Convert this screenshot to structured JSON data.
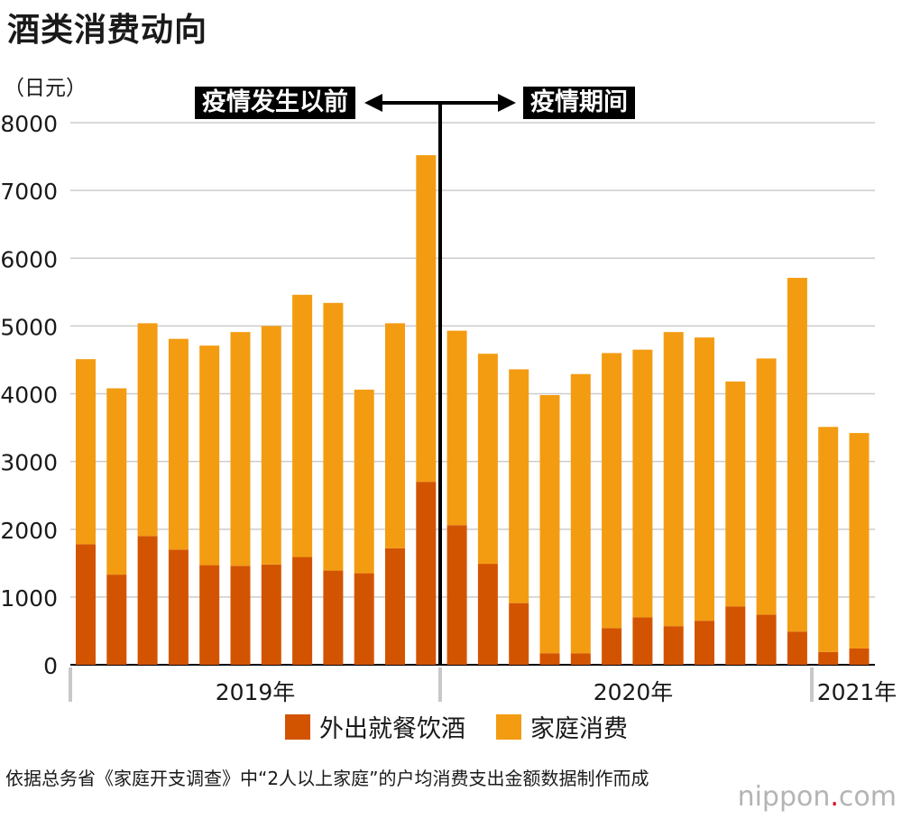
{
  "chart_data": {
    "type": "bar",
    "stacked": true,
    "title": "酒类消费动向",
    "ylabel": "（日元）",
    "ylim": [
      0,
      8000
    ],
    "yticks": [
      "0",
      "1000",
      "2000",
      "3000",
      "4000",
      "5000",
      "6000",
      "7000",
      "8000"
    ],
    "categories": [
      "2019-01",
      "2019-02",
      "2019-03",
      "2019-04",
      "2019-05",
      "2019-06",
      "2019-07",
      "2019-08",
      "2019-09",
      "2019-10",
      "2019-11",
      "2019-12",
      "2020-01",
      "2020-02",
      "2020-03",
      "2020-04",
      "2020-05",
      "2020-06",
      "2020-07",
      "2020-08",
      "2020-09",
      "2020-10",
      "2020-11",
      "2020-12",
      "2021-01",
      "2021-02"
    ],
    "year_labels": [
      "2019年",
      "2020年",
      "2021年"
    ],
    "series": [
      {
        "name": "外出就餐饮酒",
        "color": "#d35400",
        "values": [
          1780,
          1330,
          1900,
          1700,
          1470,
          1460,
          1480,
          1590,
          1390,
          1350,
          1720,
          2700,
          2060,
          1490,
          910,
          170,
          170,
          540,
          700,
          570,
          650,
          860,
          740,
          490,
          190,
          240
        ]
      },
      {
        "name": "家庭消费",
        "color": "#f39c12",
        "values": [
          2730,
          2750,
          3140,
          3110,
          3240,
          3450,
          3520,
          3870,
          3950,
          2710,
          3320,
          4820,
          2870,
          3100,
          3450,
          3810,
          4120,
          4060,
          3950,
          4340,
          4180,
          3320,
          3780,
          5220,
          3320,
          3180
        ]
      }
    ],
    "annotations": {
      "before": "疫情发生以前",
      "during": "疫情期间"
    }
  },
  "legend": {
    "dining_out": "外出就餐饮酒",
    "home": "家庭消费"
  },
  "source": "依据总务省《家庭开支调查》中“2人以上家庭”的户均消费支出金额数据制作而成",
  "logo": {
    "name": "nippon",
    "dot": ".",
    "tld": "com"
  }
}
